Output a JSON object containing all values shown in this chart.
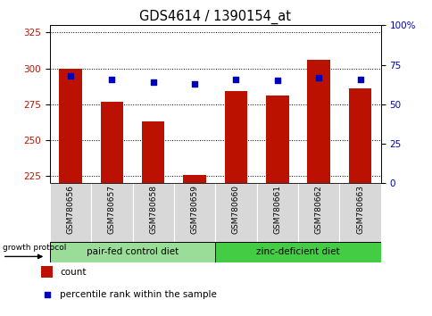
{
  "title": "GDS4614 / 1390154_at",
  "samples": [
    "GSM780656",
    "GSM780657",
    "GSM780658",
    "GSM780659",
    "GSM780660",
    "GSM780661",
    "GSM780662",
    "GSM780663"
  ],
  "counts": [
    300,
    277,
    263,
    226,
    284,
    281,
    306,
    286
  ],
  "percentiles": [
    68,
    66,
    64,
    63,
    66,
    65,
    67,
    66
  ],
  "ylim_left": [
    220,
    330
  ],
  "ylim_right": [
    0,
    100
  ],
  "yticks_left": [
    225,
    250,
    275,
    300,
    325
  ],
  "yticks_right": [
    0,
    25,
    50,
    75,
    100
  ],
  "bar_color": "#bb1100",
  "dot_color": "#0000bb",
  "plot_bg": "#ffffff",
  "xcell_bg": "#d8d8d8",
  "group1_label": "pair-fed control diet",
  "group2_label": "zinc-deficient diet",
  "group1_color": "#99dd99",
  "group2_color": "#44cc44",
  "group_protocol_label": "growth protocol",
  "legend_count_label": "count",
  "legend_pct_label": "percentile rank within the sample",
  "xticklabel_fontsize": 6.5,
  "title_fontsize": 10.5,
  "axis_fontsize": 7.5
}
